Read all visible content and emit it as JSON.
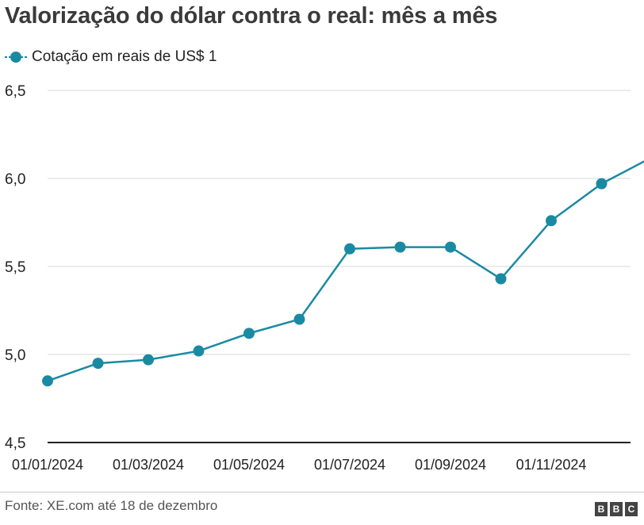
{
  "title": "Valorização do dólar contra o real: mês a mês",
  "legend": {
    "label": "Cotação em reais de US$ 1",
    "color": "#1a8aa3"
  },
  "source": "Fonte: XE.com até 18 de dezembro",
  "logo": {
    "letters": [
      "B",
      "B",
      "C"
    ]
  },
  "chart_data": {
    "type": "line",
    "title": "Valorização do dólar contra o real: mês a mês",
    "xlabel": "",
    "ylabel": "",
    "x": [
      "01/01/2024",
      "01/02/2024",
      "01/03/2024",
      "01/04/2024",
      "01/05/2024",
      "01/06/2024",
      "01/07/2024",
      "01/08/2024",
      "01/09/2024",
      "01/10/2024",
      "01/11/2024",
      "01/12/2024",
      "18/12/2024"
    ],
    "x_tick_labels": [
      "01/01/2024",
      "01/03/2024",
      "01/05/2024",
      "01/07/2024",
      "01/09/2024",
      "01/11/2024"
    ],
    "series": [
      {
        "name": "Cotação em reais de US$ 1",
        "values": [
          4.85,
          4.95,
          4.97,
          5.02,
          5.12,
          5.2,
          5.6,
          5.61,
          5.61,
          5.43,
          5.76,
          5.97,
          6.12
        ]
      }
    ],
    "yticks": [
      4.5,
      5.0,
      5.5,
      6.0,
      6.5
    ],
    "ytick_labels": [
      "4,5",
      "5,0",
      "5,5",
      "6,0",
      "6,5"
    ],
    "ylim": [
      4.5,
      6.5
    ],
    "grid": true,
    "legend_position": "top-left",
    "line_color": "#1a8aa3"
  }
}
